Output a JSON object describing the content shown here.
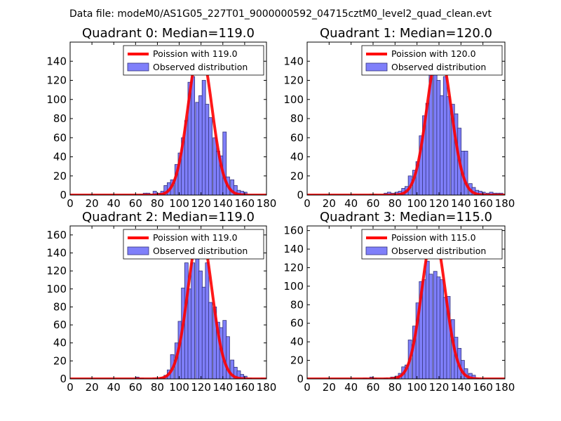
{
  "figure_title": "Data file: modeM0/AS1G05_227T01_9000000592_04715cztM0_level2_quad_clean.evt",
  "colors": {
    "bar_fill": "#7f7ffa",
    "bar_edge": "#32327a",
    "poisson_line": "#ff0000",
    "axes": "#000000"
  },
  "chart_data": [
    {
      "type": "bar",
      "title": "Quadrant 0: Median=119.0",
      "xlim": [
        0,
        180
      ],
      "ylim": [
        0,
        160
      ],
      "xticks": [
        0,
        20,
        40,
        60,
        80,
        100,
        120,
        140,
        160,
        180
      ],
      "yticks": [
        0,
        20,
        40,
        60,
        80,
        100,
        120,
        140
      ],
      "legend": {
        "location": "upper-right",
        "line_label": "Poission with 119.0",
        "bar_label": "Observed distribution"
      },
      "poisson_mean": 119.0,
      "poisson_peak": 153,
      "bin_width": 3.2,
      "bins": [
        [
          64,
          1
        ],
        [
          67,
          2
        ],
        [
          70,
          2
        ],
        [
          73,
          1
        ],
        [
          76,
          4
        ],
        [
          80,
          2
        ],
        [
          83,
          4
        ],
        [
          86,
          10
        ],
        [
          89,
          13
        ],
        [
          92,
          16
        ],
        [
          96,
          32
        ],
        [
          99,
          44
        ],
        [
          102,
          60
        ],
        [
          105,
          78
        ],
        [
          108,
          118
        ],
        [
          111,
          124
        ],
        [
          115,
          97
        ],
        [
          118,
          104
        ],
        [
          121,
          120
        ],
        [
          124,
          95
        ],
        [
          127,
          81
        ],
        [
          131,
          60
        ],
        [
          134,
          46
        ],
        [
          137,
          41
        ],
        [
          140,
          66
        ],
        [
          143,
          19
        ],
        [
          147,
          16
        ],
        [
          150,
          10
        ],
        [
          153,
          5
        ],
        [
          156,
          4
        ],
        [
          159,
          3
        ]
      ]
    },
    {
      "type": "bar",
      "title": "Quadrant 1: Median=120.0",
      "xlim": [
        0,
        180
      ],
      "ylim": [
        0,
        160
      ],
      "xticks": [
        0,
        20,
        40,
        60,
        80,
        100,
        120,
        140,
        160,
        180
      ],
      "yticks": [
        0,
        20,
        40,
        60,
        80,
        100,
        120,
        140
      ],
      "legend": {
        "location": "upper-right",
        "line_label": "Poission with 120.0",
        "bar_label": "Observed distribution"
      },
      "poisson_mean": 120.0,
      "poisson_peak": 152,
      "bin_width": 3.2,
      "bins": [
        [
          57,
          1
        ],
        [
          60,
          1
        ],
        [
          70,
          2
        ],
        [
          73,
          3
        ],
        [
          76,
          2
        ],
        [
          80,
          3
        ],
        [
          83,
          4
        ],
        [
          86,
          7
        ],
        [
          89,
          9
        ],
        [
          92,
          20
        ],
        [
          96,
          26
        ],
        [
          99,
          35
        ],
        [
          102,
          62
        ],
        [
          105,
          83
        ],
        [
          108,
          96
        ],
        [
          111,
          137
        ],
        [
          115,
          139
        ],
        [
          118,
          120
        ],
        [
          121,
          104
        ],
        [
          124,
          124
        ],
        [
          127,
          103
        ],
        [
          131,
          95
        ],
        [
          134,
          85
        ],
        [
          137,
          70
        ],
        [
          140,
          46
        ],
        [
          143,
          46
        ],
        [
          147,
          12
        ],
        [
          150,
          8
        ],
        [
          153,
          5
        ],
        [
          156,
          4
        ],
        [
          159,
          3
        ],
        [
          163,
          2
        ],
        [
          166,
          3
        ],
        [
          169,
          2
        ],
        [
          172,
          2
        ],
        [
          175,
          2
        ]
      ]
    },
    {
      "type": "bar",
      "title": "Quadrant 2: Median=119.0",
      "xlim": [
        0,
        180
      ],
      "ylim": [
        0,
        170
      ],
      "xticks": [
        0,
        20,
        40,
        60,
        80,
        100,
        120,
        140,
        160,
        180
      ],
      "yticks": [
        0,
        20,
        40,
        60,
        80,
        100,
        120,
        140,
        160
      ],
      "legend": {
        "location": "upper-right",
        "line_label": "Poission with 119.0",
        "bar_label": "Observed distribution"
      },
      "poisson_mean": 119.0,
      "poisson_peak": 165,
      "bin_width": 3.2,
      "bins": [
        [
          60,
          2
        ],
        [
          64,
          1
        ],
        [
          76,
          1
        ],
        [
          80,
          1
        ],
        [
          83,
          2
        ],
        [
          86,
          4
        ],
        [
          89,
          10
        ],
        [
          92,
          27
        ],
        [
          96,
          40
        ],
        [
          99,
          64
        ],
        [
          102,
          101
        ],
        [
          105,
          129
        ],
        [
          108,
          100
        ],
        [
          111,
          129
        ],
        [
          115,
          149
        ],
        [
          118,
          120
        ],
        [
          121,
          102
        ],
        [
          124,
          129
        ],
        [
          127,
          85
        ],
        [
          131,
          80
        ],
        [
          134,
          63
        ],
        [
          137,
          57
        ],
        [
          140,
          65
        ],
        [
          143,
          47
        ],
        [
          147,
          21
        ],
        [
          150,
          13
        ],
        [
          153,
          9
        ],
        [
          156,
          5
        ],
        [
          159,
          3
        ],
        [
          163,
          1
        ],
        [
          175,
          1
        ]
      ]
    },
    {
      "type": "bar",
      "title": "Quadrant 3: Median=115.0",
      "xlim": [
        0,
        180
      ],
      "ylim": [
        0,
        165
      ],
      "xticks": [
        0,
        20,
        40,
        60,
        80,
        100,
        120,
        140,
        160,
        180
      ],
      "yticks": [
        0,
        20,
        40,
        60,
        80,
        100,
        120,
        140,
        160
      ],
      "legend": {
        "location": "upper-right",
        "line_label": "Poission with 115.0",
        "bar_label": "Observed distribution"
      },
      "poisson_mean": 115.0,
      "poisson_peak": 157,
      "bin_width": 3.2,
      "bins": [
        [
          51,
          1
        ],
        [
          57,
          2
        ],
        [
          60,
          1
        ],
        [
          70,
          1
        ],
        [
          76,
          2
        ],
        [
          80,
          3
        ],
        [
          83,
          6
        ],
        [
          86,
          13
        ],
        [
          89,
          15
        ],
        [
          92,
          42
        ],
        [
          96,
          57
        ],
        [
          99,
          82
        ],
        [
          102,
          105
        ],
        [
          105,
          107
        ],
        [
          108,
          127
        ],
        [
          111,
          113
        ],
        [
          115,
          116
        ],
        [
          118,
          110
        ],
        [
          121,
          107
        ],
        [
          124,
          88
        ],
        [
          127,
          89
        ],
        [
          131,
          64
        ],
        [
          134,
          45
        ],
        [
          137,
          33
        ],
        [
          140,
          20
        ],
        [
          143,
          11
        ],
        [
          147,
          6
        ],
        [
          150,
          4
        ],
        [
          153,
          1
        ]
      ]
    }
  ]
}
